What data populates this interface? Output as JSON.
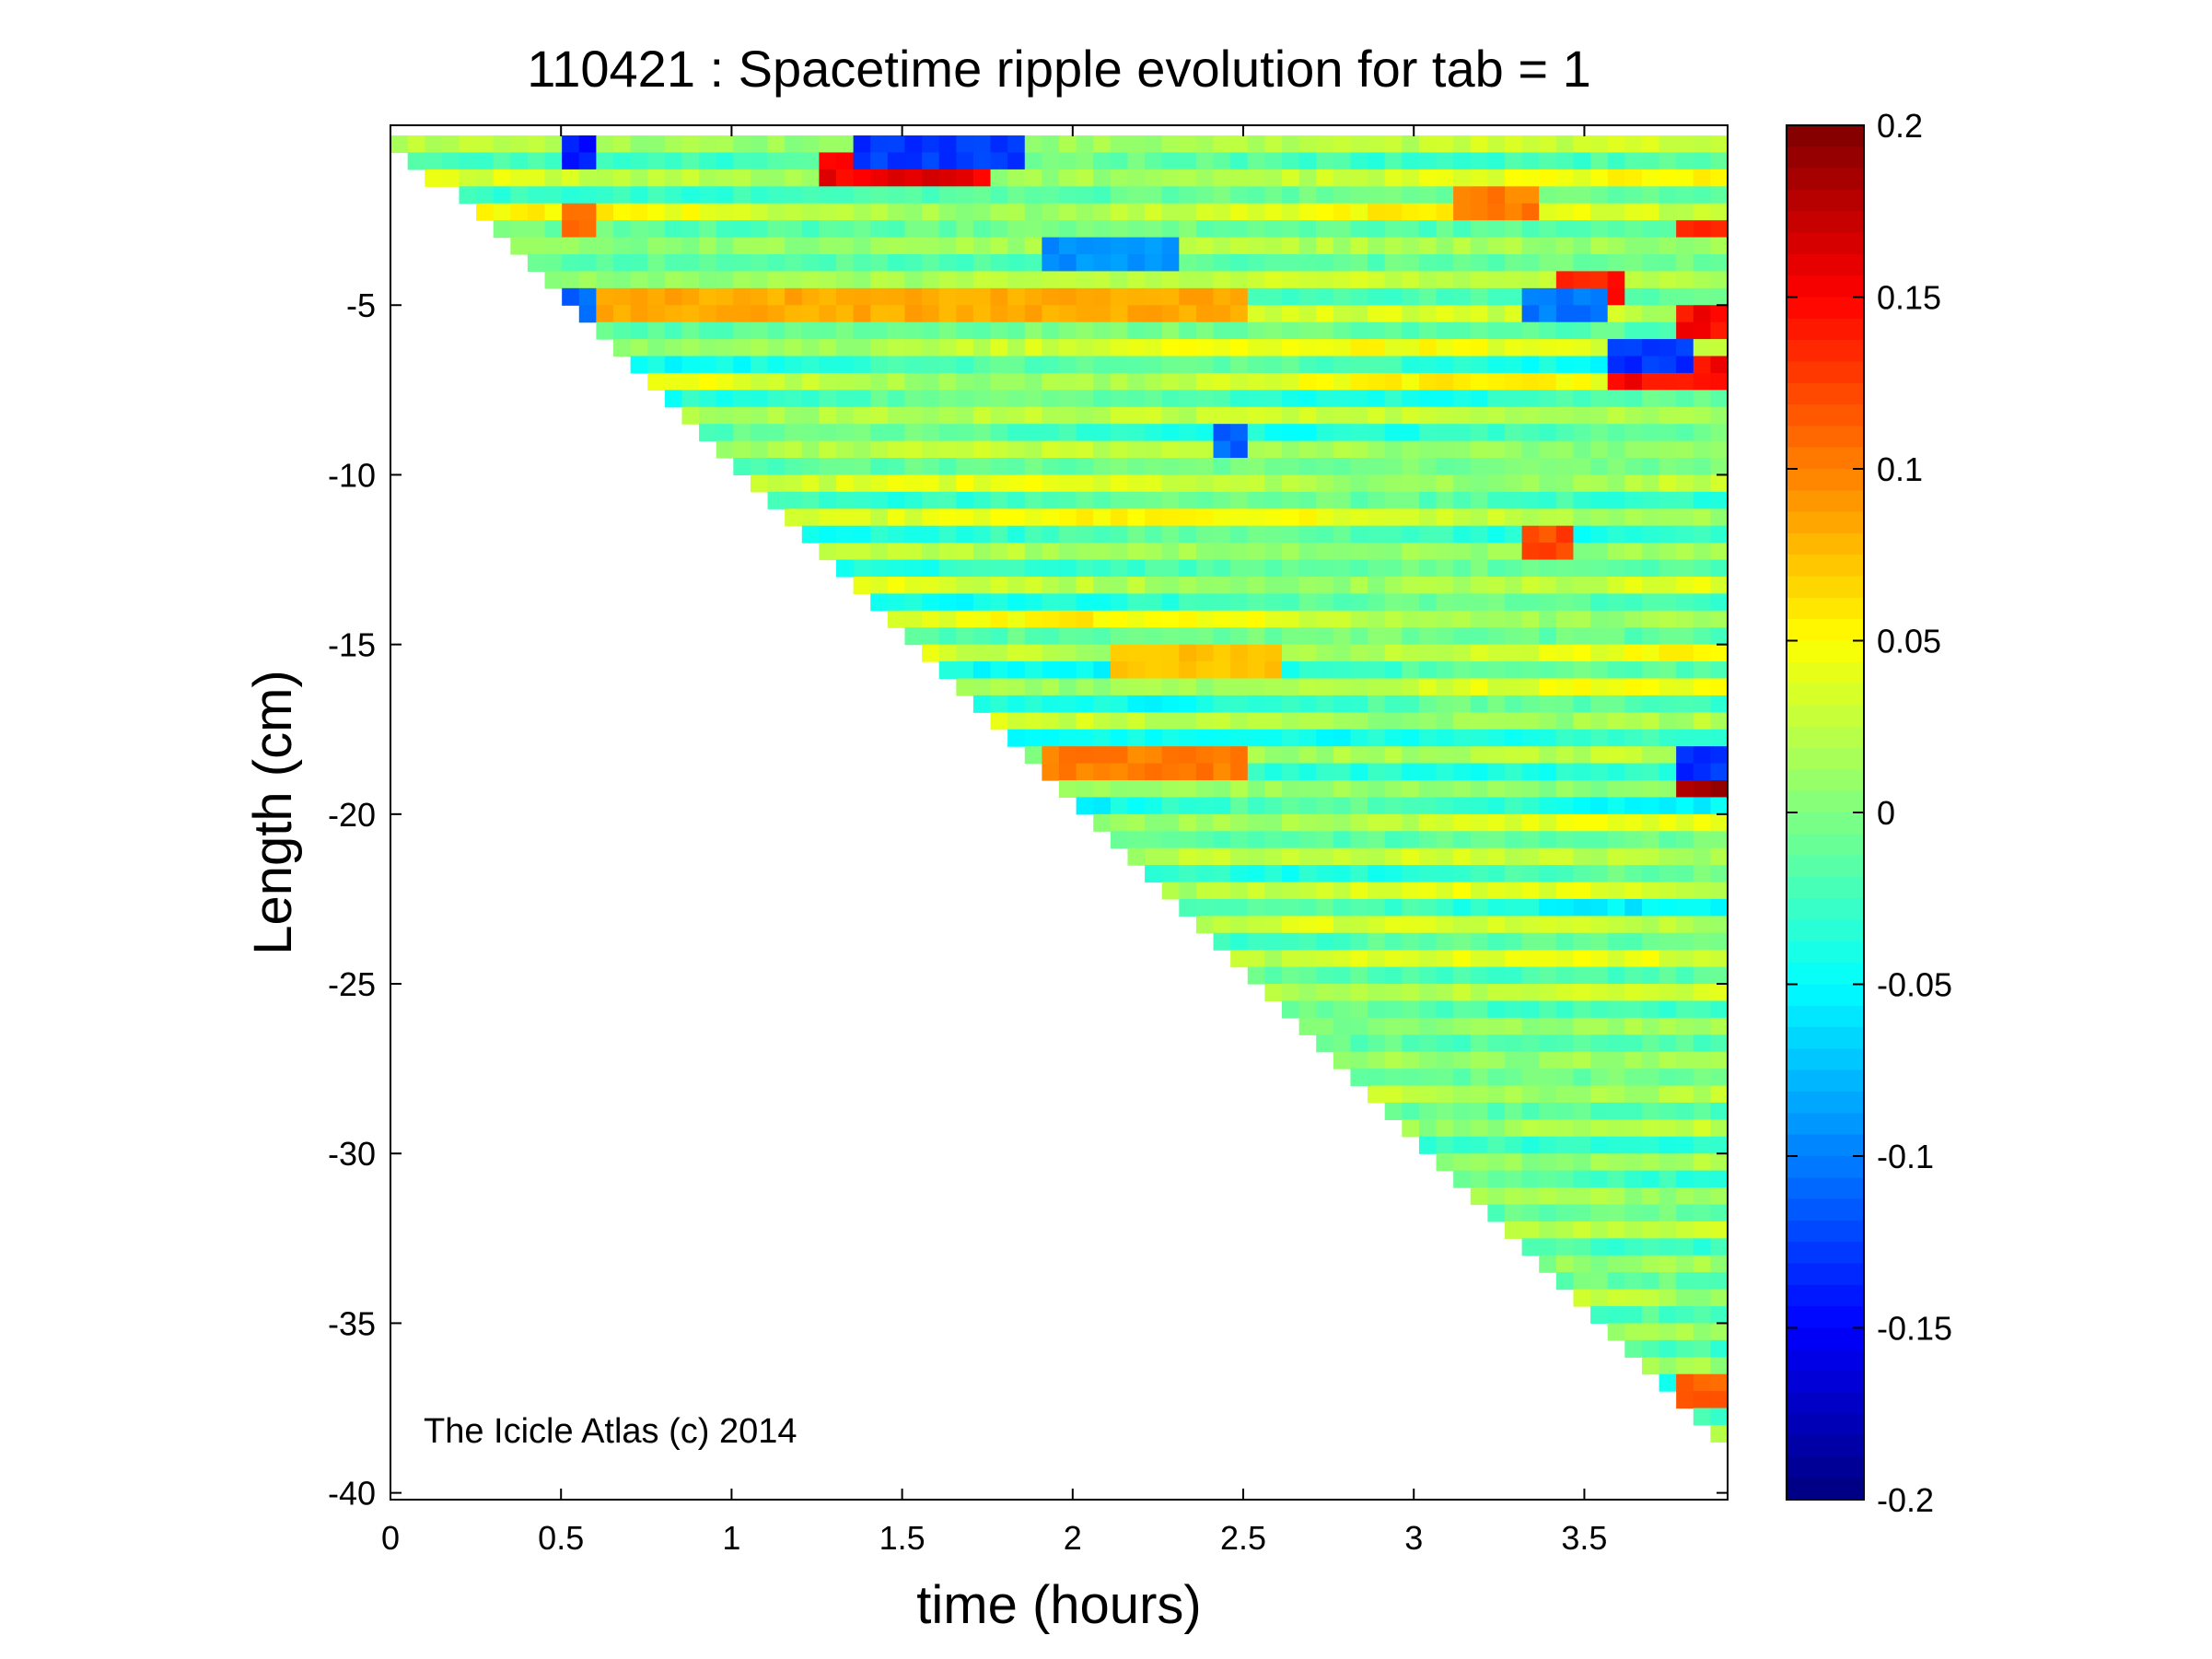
{
  "chart_data": {
    "type": "heatmap",
    "title": "110421 : Spacetime ripple evolution for tab = 1",
    "xlabel": "time (hours)",
    "ylabel": "Length (cm)",
    "xlim": [
      0,
      3.92
    ],
    "ylim": [
      -40.2,
      0.3
    ],
    "x_ticks": [
      0,
      0.5,
      1,
      1.5,
      2,
      2.5,
      3,
      3.5
    ],
    "x_tick_labels": [
      "0",
      "0.5",
      "1",
      "1.5",
      "2",
      "2.5",
      "3",
      "3.5"
    ],
    "y_ticks": [
      -5,
      -10,
      -15,
      -20,
      -25,
      -30,
      -35,
      -40
    ],
    "y_tick_labels": [
      "-5",
      "-10",
      "-15",
      "-20",
      "-25",
      "-30",
      "-35",
      "-40"
    ],
    "colorbar": {
      "colormap": "jet",
      "range": [
        -0.2,
        0.2
      ],
      "ticks": [
        0.2,
        0.15,
        0.1,
        0.05,
        0,
        -0.05,
        -0.1,
        -0.15,
        -0.2
      ],
      "tick_labels": [
        "0.2",
        "0.15",
        "0.1",
        "0.05",
        "0",
        "-0.05",
        "-0.1",
        "-0.15",
        "-0.2"
      ]
    },
    "growth_front": {
      "t": [
        0,
        3.92
      ],
      "length": [
        0,
        -38.8
      ]
    },
    "data_max_time": 3.92,
    "strong_features": [
      {
        "t_start": 1.25,
        "t_end": 1.75,
        "length": -1.0,
        "value": 0.17
      },
      {
        "t_start": 1.35,
        "t_end": 1.85,
        "length": -0.4,
        "value": -0.14
      },
      {
        "t_start": 0.48,
        "t_end": 0.58,
        "length": -0.6,
        "value": -0.15
      },
      {
        "t_start": 0.48,
        "t_end": 0.58,
        "length": -2.5,
        "value": 0.12
      },
      {
        "t_start": 0.48,
        "t_end": 0.58,
        "length": -4.9,
        "value": -0.12
      },
      {
        "t_start": 3.55,
        "t_end": 3.92,
        "length": -7.0,
        "value": 0.16
      },
      {
        "t_start": 3.55,
        "t_end": 3.8,
        "length": -6.4,
        "value": -0.14
      },
      {
        "t_start": 3.4,
        "t_end": 3.6,
        "length": -4.6,
        "value": 0.15
      },
      {
        "t_start": 3.3,
        "t_end": 3.55,
        "length": -5.1,
        "value": -0.11
      },
      {
        "t_start": 3.78,
        "t_end": 3.92,
        "length": -5.4,
        "value": 0.16
      },
      {
        "t_start": 3.78,
        "t_end": 3.92,
        "length": -2.7,
        "value": 0.14
      },
      {
        "t_start": 3.75,
        "t_end": 3.92,
        "length": -19.0,
        "value": 0.2
      },
      {
        "t_start": 3.75,
        "t_end": 3.92,
        "length": -18.6,
        "value": -0.14
      },
      {
        "t_start": 2.4,
        "t_end": 2.5,
        "length": -9.0,
        "value": -0.12
      },
      {
        "t_start": 3.3,
        "t_end": 3.45,
        "length": -11.8,
        "value": 0.13
      },
      {
        "t_start": 3.75,
        "t_end": 3.92,
        "length": -37.0,
        "value": 0.12
      },
      {
        "t_start": 1.9,
        "t_end": 2.5,
        "length": -18.4,
        "value": 0.11
      },
      {
        "t_start": 3.1,
        "t_end": 3.35,
        "length": -1.8,
        "value": 0.11
      },
      {
        "t_start": 0.6,
        "t_end": 2.5,
        "length": -5.0,
        "value": 0.09
      },
      {
        "t_start": 1.9,
        "t_end": 2.3,
        "length": -3.6,
        "value": -0.1
      },
      {
        "t_start": 2.1,
        "t_end": 2.6,
        "length": -15.3,
        "value": 0.08
      }
    ],
    "watermark": "The Icicle Atlas (c) 2014"
  }
}
